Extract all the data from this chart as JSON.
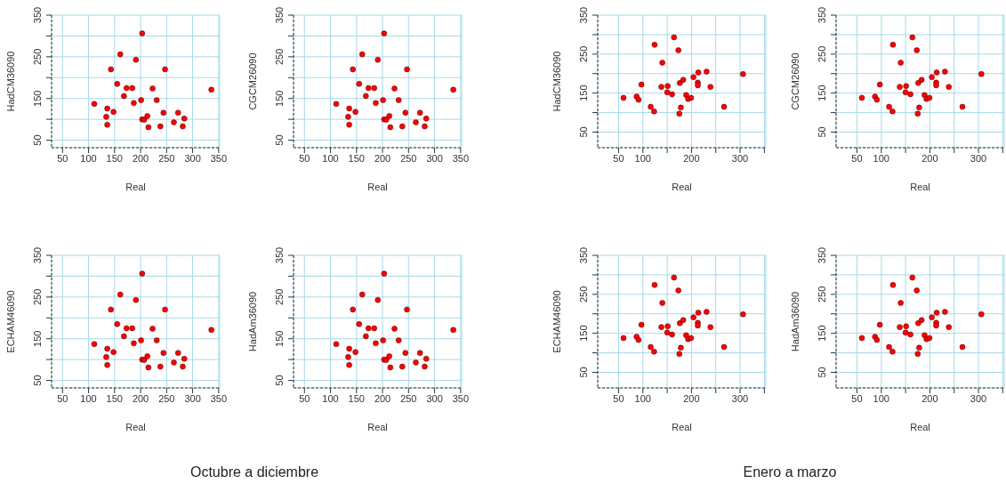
{
  "chart_data": [
    {
      "type": "scatter",
      "xlabel": "Real",
      "ylabel": "HadCM36090",
      "marker": "circle",
      "grid": true,
      "xlim": [
        29,
        352
      ],
      "ylim": [
        32,
        350
      ],
      "xticks": [
        50,
        100,
        150,
        200,
        250,
        300,
        350
      ],
      "yticks": [
        50,
        {
          "value": 100,
          "label": null
        },
        150,
        {
          "value": 200,
          "label": null
        },
        250,
        {
          "value": 300,
          "label": null
        },
        350
      ],
      "series": [
        {
          "color": "#ff0000",
          "x": [
            111,
            136,
            134,
            136,
            148,
            143,
            155,
            161,
            168,
            173,
            184,
            187,
            191,
            201,
            203,
            203,
            207,
            213,
            215,
            223,
            231,
            238,
            244,
            247,
            264,
            272,
            281,
            284,
            336
          ],
          "values": [
            137,
            126,
            106,
            87,
            118,
            220,
            185,
            256,
            156,
            175,
            175,
            139,
            243,
            146,
            306,
            100,
            99,
            108,
            81,
            174,
            146,
            83,
            116,
            220,
            93,
            116,
            83,
            102,
            171
          ]
        }
      ]
    },
    {
      "type": "scatter",
      "xlabel": "Real",
      "ylabel": "CGCM26090",
      "marker": "circle",
      "grid": true,
      "xlim": [
        29,
        352
      ],
      "ylim": [
        32,
        350
      ],
      "xticks": [
        50,
        100,
        150,
        200,
        250,
        300,
        350
      ],
      "yticks": [
        50,
        {
          "value": 100,
          "label": null
        },
        150,
        {
          "value": 200,
          "label": null
        },
        250,
        {
          "value": 300,
          "label": null
        },
        350
      ],
      "series": [
        {
          "color": "#ff0000",
          "x": [
            111,
            136,
            134,
            136,
            148,
            143,
            155,
            161,
            168,
            173,
            184,
            187,
            191,
            201,
            203,
            203,
            207,
            213,
            215,
            223,
            231,
            238,
            244,
            247,
            264,
            272,
            281,
            284,
            336
          ],
          "values": [
            137,
            126,
            106,
            87,
            118,
            220,
            185,
            256,
            156,
            175,
            175,
            139,
            243,
            146,
            306,
            100,
            99,
            108,
            81,
            174,
            146,
            83,
            116,
            220,
            93,
            116,
            83,
            102,
            171
          ]
        }
      ]
    },
    {
      "type": "scatter",
      "xlabel": "Real",
      "ylabel": "HadCM36090",
      "marker": "circle",
      "grid": true,
      "xlim": [
        7,
        353
      ],
      "ylim": [
        10,
        350
      ],
      "xticks": [
        50,
        100,
        {
          "value": 150,
          "label": null
        },
        200,
        {
          "value": 250,
          "label": null
        },
        300,
        {
          "value": 350,
          "label": null
        }
      ],
      "yticks": [
        50,
        {
          "value": 100,
          "label": null
        },
        150,
        {
          "value": 200,
          "label": null
        },
        250,
        {
          "value": 300,
          "label": null
        },
        350
      ],
      "series": [
        {
          "color": "#ff0000",
          "x": [
            60,
            87,
            91,
            97,
            116,
            124,
            140,
            138,
            123,
            151,
            150,
            160,
            164,
            173,
            176,
            178,
            175,
            183,
            189,
            193,
            199,
            204,
            213,
            213,
            214,
            231,
            239,
            267,
            306
          ],
          "values": [
            138,
            141,
            133,
            172,
            115,
            274,
            228,
            166,
            103,
            168,
            152,
            147,
            293,
            260,
            176,
            113,
            97,
            184,
            145,
            135,
            138,
            191,
            177,
            170,
            203,
            205,
            166,
            115,
            199
          ]
        }
      ]
    },
    {
      "type": "scatter",
      "xlabel": "Real",
      "ylabel": "CGCM26090",
      "marker": "circle",
      "grid": true,
      "xlim": [
        7,
        353
      ],
      "ylim": [
        10,
        350
      ],
      "xticks": [
        50,
        100,
        {
          "value": 150,
          "label": null
        },
        200,
        {
          "value": 250,
          "label": null
        },
        300,
        {
          "value": 350,
          "label": null
        }
      ],
      "yticks": [
        50,
        {
          "value": 100,
          "label": null
        },
        150,
        {
          "value": 200,
          "label": null
        },
        250,
        {
          "value": 300,
          "label": null
        },
        350
      ],
      "series": [
        {
          "color": "#ff0000",
          "x": [
            60,
            87,
            91,
            97,
            116,
            124,
            140,
            138,
            123,
            151,
            150,
            160,
            164,
            173,
            176,
            178,
            175,
            183,
            189,
            193,
            199,
            204,
            213,
            213,
            214,
            231,
            239,
            267,
            306
          ],
          "values": [
            138,
            141,
            133,
            172,
            115,
            274,
            228,
            166,
            103,
            168,
            152,
            147,
            293,
            260,
            176,
            113,
            97,
            184,
            145,
            135,
            138,
            191,
            177,
            170,
            203,
            205,
            166,
            115,
            199
          ]
        }
      ]
    },
    {
      "type": "scatter",
      "xlabel": "Real",
      "ylabel": "ECHAM46090",
      "marker": "circle",
      "grid": true,
      "xlim": [
        29,
        352
      ],
      "ylim": [
        32,
        350
      ],
      "xticks": [
        50,
        100,
        150,
        200,
        250,
        300,
        350
      ],
      "yticks": [
        50,
        {
          "value": 100,
          "label": null
        },
        150,
        {
          "value": 200,
          "label": null
        },
        250,
        {
          "value": 300,
          "label": null
        },
        350
      ],
      "annotations": [
        "Octubre a diciembre"
      ],
      "series": [
        {
          "color": "#ff0000",
          "x": [
            111,
            136,
            134,
            136,
            148,
            143,
            155,
            161,
            168,
            173,
            184,
            187,
            191,
            201,
            203,
            203,
            207,
            213,
            215,
            223,
            231,
            238,
            244,
            247,
            264,
            272,
            281,
            284,
            336
          ],
          "values": [
            137,
            126,
            106,
            87,
            118,
            220,
            185,
            256,
            156,
            175,
            175,
            139,
            243,
            146,
            306,
            100,
            99,
            108,
            81,
            174,
            146,
            83,
            116,
            220,
            93,
            116,
            83,
            102,
            171
          ]
        }
      ]
    },
    {
      "type": "scatter",
      "xlabel": "Real",
      "ylabel": "HadAm36090",
      "marker": "circle",
      "grid": true,
      "xlim": [
        29,
        352
      ],
      "ylim": [
        32,
        350
      ],
      "xticks": [
        50,
        100,
        150,
        200,
        250,
        300,
        350
      ],
      "yticks": [
        50,
        {
          "value": 100,
          "label": null
        },
        150,
        {
          "value": 200,
          "label": null
        },
        250,
        {
          "value": 300,
          "label": null
        },
        350
      ],
      "series": [
        {
          "color": "#ff0000",
          "x": [
            111,
            136,
            134,
            136,
            148,
            143,
            155,
            161,
            168,
            173,
            184,
            187,
            191,
            201,
            203,
            203,
            207,
            213,
            215,
            223,
            231,
            238,
            244,
            247,
            264,
            272,
            281,
            284,
            336
          ],
          "values": [
            137,
            126,
            106,
            87,
            118,
            220,
            185,
            256,
            156,
            175,
            175,
            139,
            243,
            146,
            306,
            100,
            99,
            108,
            81,
            174,
            146,
            83,
            116,
            220,
            93,
            116,
            83,
            102,
            171
          ]
        }
      ]
    },
    {
      "type": "scatter",
      "xlabel": "Real",
      "ylabel": "ECHAM46090",
      "marker": "circle",
      "grid": true,
      "xlim": [
        7,
        353
      ],
      "ylim": [
        10,
        350
      ],
      "xticks": [
        50,
        100,
        {
          "value": 150,
          "label": null
        },
        200,
        {
          "value": 250,
          "label": null
        },
        300,
        {
          "value": 350,
          "label": null
        }
      ],
      "yticks": [
        50,
        {
          "value": 100,
          "label": null
        },
        150,
        {
          "value": 200,
          "label": null
        },
        250,
        {
          "value": 300,
          "label": null
        },
        350
      ],
      "annotations": [
        "Enero a marzo"
      ],
      "series": [
        {
          "color": "#ff0000",
          "x": [
            60,
            87,
            91,
            97,
            116,
            124,
            140,
            138,
            123,
            151,
            150,
            160,
            164,
            173,
            176,
            178,
            175,
            183,
            189,
            193,
            199,
            204,
            213,
            213,
            214,
            231,
            239,
            267,
            306
          ],
          "values": [
            138,
            141,
            133,
            172,
            115,
            274,
            228,
            166,
            103,
            168,
            152,
            147,
            293,
            260,
            176,
            113,
            97,
            184,
            145,
            135,
            138,
            191,
            177,
            170,
            203,
            205,
            166,
            115,
            199
          ]
        }
      ]
    },
    {
      "type": "scatter",
      "xlabel": "Real",
      "ylabel": "HadAm36090",
      "marker": "circle",
      "grid": true,
      "xlim": [
        7,
        353
      ],
      "ylim": [
        10,
        350
      ],
      "xticks": [
        50,
        100,
        {
          "value": 150,
          "label": null
        },
        200,
        {
          "value": 250,
          "label": null
        },
        300,
        {
          "value": 350,
          "label": null
        }
      ],
      "yticks": [
        50,
        {
          "value": 100,
          "label": null
        },
        150,
        {
          "value": 200,
          "label": null
        },
        250,
        {
          "value": 300,
          "label": null
        },
        350
      ],
      "series": [
        {
          "color": "#ff0000",
          "x": [
            60,
            87,
            91,
            97,
            116,
            124,
            140,
            138,
            123,
            151,
            150,
            160,
            164,
            173,
            176,
            178,
            175,
            183,
            189,
            193,
            199,
            204,
            213,
            213,
            214,
            231,
            239,
            267,
            306
          ],
          "values": [
            138,
            141,
            133,
            172,
            115,
            274,
            228,
            166,
            103,
            168,
            152,
            147,
            293,
            260,
            176,
            113,
            97,
            184,
            145,
            135,
            138,
            191,
            177,
            170,
            203,
            205,
            166,
            115,
            199
          ]
        }
      ]
    }
  ]
}
